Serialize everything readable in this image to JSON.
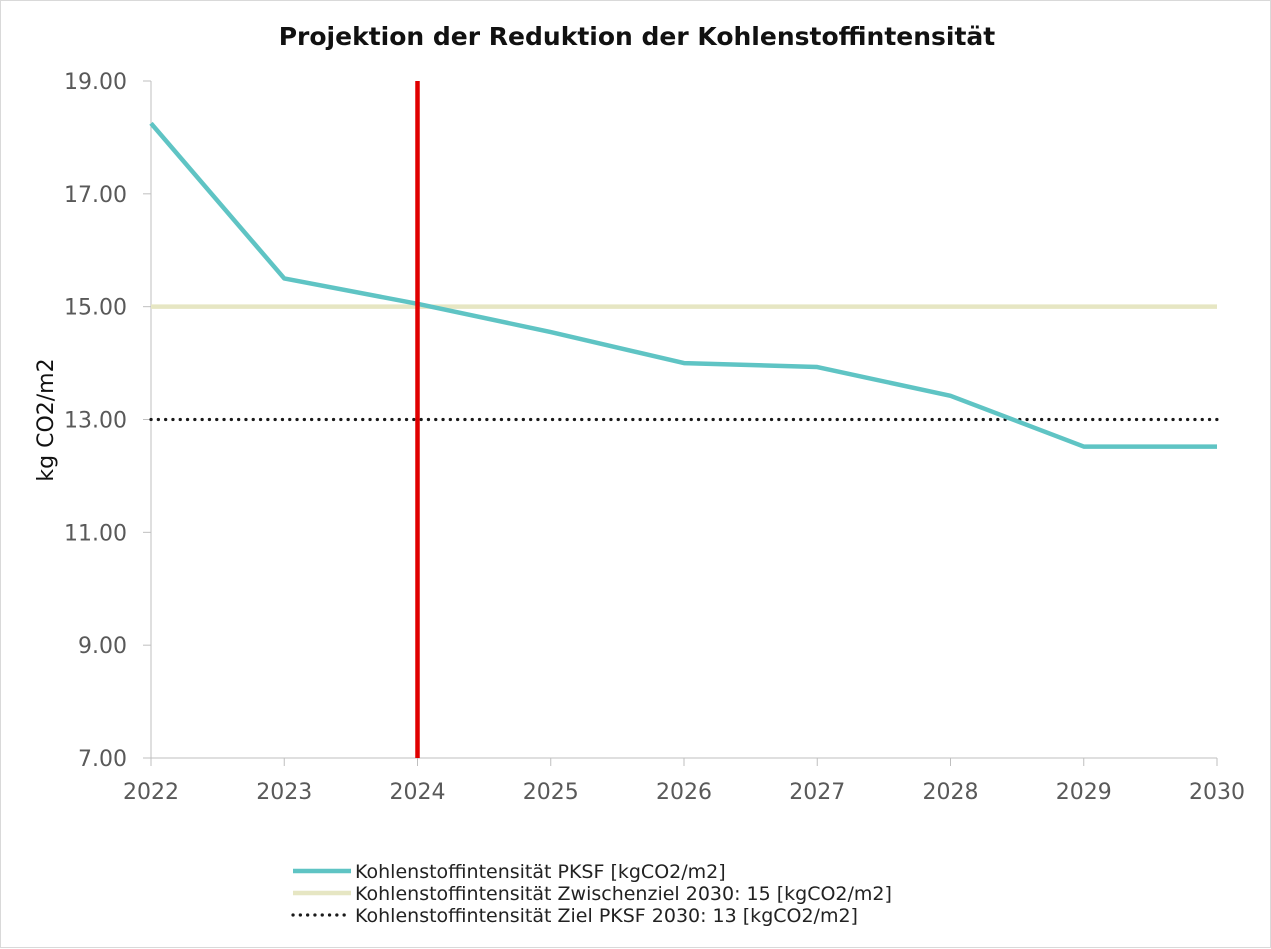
{
  "chart_data": {
    "type": "line",
    "title": "Projektion der Reduktion der Kohlenstoffintensität",
    "xlabel": "",
    "ylabel": "kg CO2/m2",
    "categories": [
      "2022",
      "2023",
      "2024",
      "2025",
      "2026",
      "2027",
      "2028",
      "2029",
      "2030"
    ],
    "y_ticks": [
      "7.00",
      "9.00",
      "11.00",
      "13.00",
      "15.00",
      "17.00",
      "19.00"
    ],
    "ylim": [
      7,
      19
    ],
    "grid": false,
    "legend_position": "bottom",
    "series": [
      {
        "name": "Kohlenstoffintensität PKSF [kgCO2/m2]",
        "style": "solid",
        "color": "#5fc4c4",
        "values": [
          18.25,
          15.5,
          15.05,
          14.55,
          14.0,
          13.93,
          13.42,
          12.52,
          12.52
        ]
      },
      {
        "name": "Kohlenstoffintensität Zwischenziel 2030: 15 [kgCO2/m2]",
        "style": "solid",
        "color": "#e6e6c3",
        "values": [
          15,
          15,
          15,
          15,
          15,
          15,
          15,
          15,
          15
        ]
      },
      {
        "name": "Kohlenstoffintensität Ziel PKSF 2030: 13 [kgCO2/m2]",
        "style": "dotted",
        "color": "#1a1a1a",
        "values": [
          13,
          13,
          13,
          13,
          13,
          13,
          13,
          13,
          13
        ]
      }
    ],
    "marker_line": {
      "x": "2024",
      "color": "#e00000"
    }
  }
}
